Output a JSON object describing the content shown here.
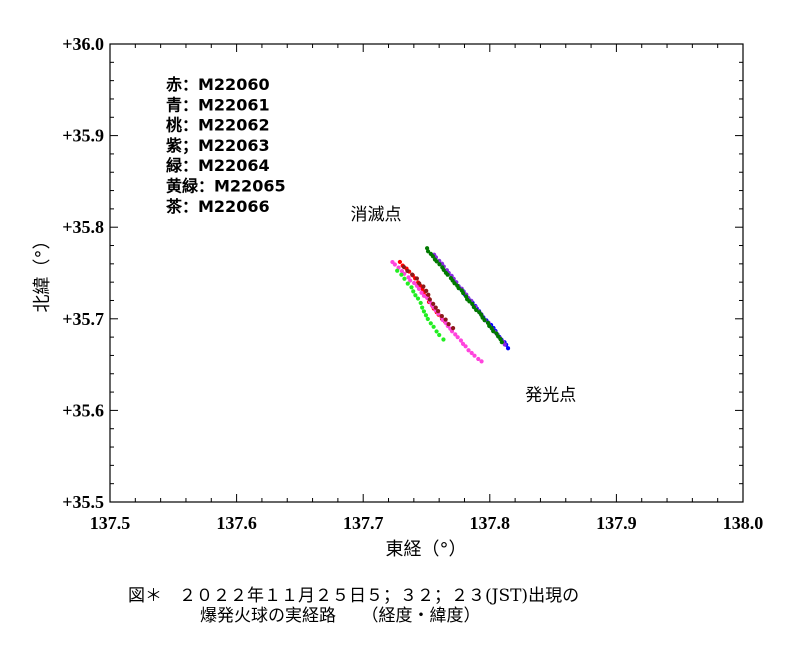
{
  "chart_data": {
    "type": "scatter",
    "xlabel": "東経（°）",
    "ylabel": "北緯（°）",
    "xlim": [
      137.5,
      138.0
    ],
    "ylim": [
      35.5,
      36.0
    ],
    "x_ticks": [
      "137.5",
      "137.6",
      "137.7",
      "137.8",
      "137.9",
      "138.0"
    ],
    "y_ticks": [
      "+35.5",
      "+35.6",
      "+35.7",
      "+35.8",
      "+35.9",
      "+36.0"
    ],
    "grid": false,
    "legend_position": "top-left",
    "legend": [
      "赤：M22060",
      "青：M22061",
      "桃：M22062",
      "紫；M22063",
      "緑：M22064",
      "黄緑：M22065",
      "茶：M22066"
    ],
    "annotations": [
      {
        "text": "消滅点",
        "x": 137.69,
        "y": 35.808
      },
      {
        "text": "発光点",
        "x": 137.828,
        "y": 35.611
      }
    ],
    "series": [
      {
        "name": "M22060",
        "color": "#ff0000",
        "x_start": 137.729,
        "x_end": 137.768,
        "y_start": 35.762,
        "y_end": 35.693
      },
      {
        "name": "M22061",
        "color": "#0000ff",
        "x_start": 137.77,
        "x_end": 137.815,
        "y_start": 35.745,
        "y_end": 35.668
      },
      {
        "name": "M22062",
        "color": "#ff44dd",
        "x_start": 137.723,
        "x_end": 137.794,
        "y_start": 35.762,
        "y_end": 35.653
      },
      {
        "name": "M22063",
        "color": "#8a2be2",
        "x_start": 137.756,
        "x_end": 137.812,
        "y_start": 35.77,
        "y_end": 35.672
      },
      {
        "name": "M22064",
        "color": "#007a00",
        "x_start": 137.75,
        "x_end": 137.81,
        "y_start": 35.777,
        "y_end": 35.675
      },
      {
        "name": "M22065",
        "color": "#22ee22",
        "x_start": 137.727,
        "x_end": 137.764,
        "y_start": 35.752,
        "y_end": 35.678
      },
      {
        "name": "M22066",
        "color": "#8b1a1a",
        "x_start": 137.732,
        "x_end": 137.772,
        "y_start": 35.757,
        "y_end": 35.69
      }
    ]
  },
  "caption": {
    "line1": "図＊　２０２２年１１月２５日５；３２；２３(JST)出現の",
    "line2": "爆発火球の実経路　　（経度・緯度）"
  }
}
